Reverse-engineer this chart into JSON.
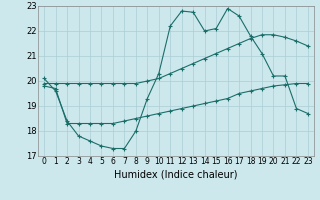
{
  "xlabel": "Humidex (Indice chaleur)",
  "background_color": "#cde8ec",
  "line_color": "#1a6e6a",
  "grid_color": "#aacdd4",
  "x_values": [
    0,
    1,
    2,
    3,
    4,
    5,
    6,
    7,
    8,
    9,
    10,
    11,
    12,
    13,
    14,
    15,
    16,
    17,
    18,
    19,
    20,
    21,
    22,
    23
  ],
  "line1": [
    20.1,
    19.6,
    18.4,
    17.8,
    17.6,
    17.4,
    17.3,
    17.3,
    18.0,
    19.3,
    20.3,
    22.2,
    22.8,
    22.75,
    22.0,
    22.1,
    22.9,
    22.6,
    21.8,
    21.1,
    20.2,
    20.2,
    18.9,
    18.7
  ],
  "line2": [
    19.9,
    19.9,
    19.9,
    19.9,
    19.9,
    19.9,
    19.9,
    19.9,
    19.9,
    20.0,
    20.1,
    20.3,
    20.5,
    20.7,
    20.9,
    21.1,
    21.3,
    21.5,
    21.7,
    21.85,
    21.85,
    21.75,
    21.6,
    21.4
  ],
  "line3": [
    19.8,
    19.7,
    18.3,
    18.3,
    18.3,
    18.3,
    18.3,
    18.4,
    18.5,
    18.6,
    18.7,
    18.8,
    18.9,
    19.0,
    19.1,
    19.2,
    19.3,
    19.5,
    19.6,
    19.7,
    19.8,
    19.85,
    19.9,
    19.9
  ],
  "ylim": [
    17,
    23
  ],
  "xlim": [
    -0.5,
    23.5
  ],
  "yticks": [
    17,
    18,
    19,
    20,
    21,
    22,
    23
  ],
  "xticks": [
    0,
    1,
    2,
    3,
    4,
    5,
    6,
    7,
    8,
    9,
    10,
    11,
    12,
    13,
    14,
    15,
    16,
    17,
    18,
    19,
    20,
    21,
    22,
    23
  ]
}
